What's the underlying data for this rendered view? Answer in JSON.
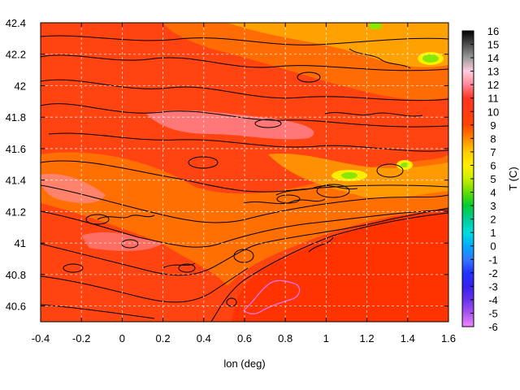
{
  "chart_data": {
    "type": "heatmap",
    "title": "",
    "xlabel": "lon (deg)",
    "ylabel": "",
    "xlim": [
      -0.4,
      1.6
    ],
    "ylim": [
      40.5,
      42.4
    ],
    "x_ticks": [
      -0.4,
      -0.2,
      0,
      0.2,
      0.4,
      0.6,
      0.8,
      1,
      1.2,
      1.4,
      1.6
    ],
    "x_tick_labels": [
      "-0.4",
      "-0.2",
      "0",
      "0.2",
      "0.4",
      "0.6",
      "0.8",
      "1",
      "1.2",
      "1.4",
      "1.6"
    ],
    "y_ticks": [
      40.6,
      40.8,
      41,
      41.2,
      41.4,
      41.6,
      41.8,
      42,
      42.2,
      42.4
    ],
    "y_tick_labels": [
      "40.6",
      "40.8",
      "41",
      "41.2",
      "41.4",
      "41.6",
      "41.8",
      "42",
      "42.2",
      "42.4"
    ],
    "grid": true,
    "colorbar": {
      "label": "T (C)",
      "min": -6,
      "max": 16,
      "ticks": [
        16,
        15,
        14,
        13,
        12,
        11,
        10,
        9,
        8,
        7,
        6,
        5,
        4,
        3,
        2,
        1,
        0,
        -1,
        -2,
        -3,
        -4,
        -5,
        -6
      ],
      "tick_labels": [
        "16",
        "15",
        "14",
        "13",
        "12",
        "11",
        "10",
        "9",
        "8",
        "7",
        "6",
        "5",
        "4",
        "3",
        "2",
        "1",
        "0",
        "-1",
        "-2",
        "-3",
        "-4",
        "-5",
        "-6"
      ],
      "stops": [
        {
          "value": 16,
          "color": "#000000"
        },
        {
          "value": 14,
          "color": "#9a9a9a"
        },
        {
          "value": 13,
          "color": "#ffccdd"
        },
        {
          "value": 12,
          "color": "#ff8899"
        },
        {
          "value": 11,
          "color": "#ff3322"
        },
        {
          "value": 9,
          "color": "#ff4400"
        },
        {
          "value": 8,
          "color": "#ff8800"
        },
        {
          "value": 7,
          "color": "#ffcc00"
        },
        {
          "value": 6,
          "color": "#ffee00"
        },
        {
          "value": 5,
          "color": "#ccee00"
        },
        {
          "value": 4,
          "color": "#66dd00"
        },
        {
          "value": 3,
          "color": "#00cc33"
        },
        {
          "value": 2,
          "color": "#00cc99"
        },
        {
          "value": 1,
          "color": "#00dddd"
        },
        {
          "value": 0,
          "color": "#00aaff"
        },
        {
          "value": -1,
          "color": "#3377ff"
        },
        {
          "value": -2,
          "color": "#2233ff"
        },
        {
          "value": -3,
          "color": "#3322ee"
        },
        {
          "value": -4,
          "color": "#6633ee"
        },
        {
          "value": -5,
          "color": "#aa55ee"
        },
        {
          "value": -6,
          "color": "#ee88ff"
        }
      ]
    },
    "field_colors": {
      "sea": "#ff3300",
      "land_mid": "#ff4411",
      "land_warm": "#ff7700",
      "land_orange": "#ffaa00",
      "peaks_pink": "#ff8a99",
      "cold_yellow": "#ffee00",
      "cold_green": "#88e800",
      "contour": "#000000",
      "contour_pink": "#ff77ff"
    }
  }
}
